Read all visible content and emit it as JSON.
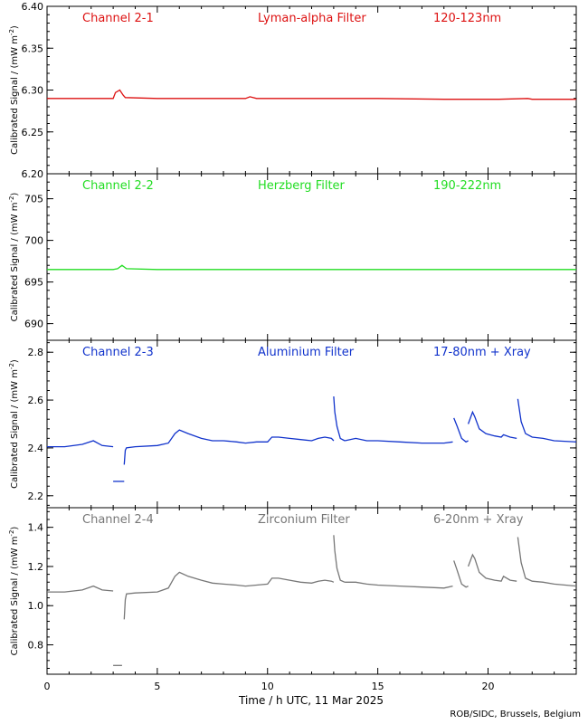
{
  "credit": "ROB/SIDC, Brussels, Belgium",
  "chart_data": {
    "type": "line",
    "xlabel": "Time / h UTC, 11 Mar 2025",
    "xlim": [
      0,
      24
    ],
    "xticks": [
      0,
      5,
      10,
      15,
      20
    ],
    "panels": [
      {
        "channel": "Channel 2-1",
        "filter": "Lyman-alpha Filter",
        "band": "120-123nm",
        "color": "#dd1111",
        "ylabel": "Calibrated Signal / (mW m",
        "ylabel_sup": "-2",
        "ylabel_end": ")",
        "ylim": [
          6.2,
          6.4
        ],
        "yticks": [
          "6.20",
          "6.25",
          "6.30",
          "6.35",
          "6.40"
        ],
        "series": [
          {
            "x": [
              0,
              3.0,
              3.1,
              3.3,
              3.45,
              3.55,
              5,
              7.5,
              9.0,
              9.2,
              9.5,
              12,
              15,
              18,
              20.5,
              21.8,
              22,
              24
            ],
            "y": [
              6.29,
              6.29,
              6.297,
              6.3,
              6.294,
              6.291,
              6.29,
              6.29,
              6.29,
              6.292,
              6.29,
              6.29,
              6.29,
              6.289,
              6.289,
              6.29,
              6.289,
              6.289
            ]
          }
        ]
      },
      {
        "channel": "Channel 2-2",
        "filter": "Herzberg Filter",
        "band": "190-222nm",
        "color": "#22dd22",
        "ylabel": "Calibrated Signal / (mW m",
        "ylabel_sup": "-2",
        "ylabel_end": ")",
        "ylim": [
          688,
          708
        ],
        "yticks": [
          "690",
          "695",
          "700",
          "705"
        ],
        "series": [
          {
            "x": [
              0,
              3.0,
              3.2,
              3.4,
              3.6,
              5,
              10,
              15,
              20,
              24
            ],
            "y": [
              696.5,
              696.5,
              696.6,
              697.0,
              696.6,
              696.5,
              696.5,
              696.5,
              696.5,
              696.5
            ]
          }
        ]
      },
      {
        "channel": "Channel 2-3",
        "filter": "Aluminium Filter",
        "band": "17-80nm + Xray",
        "color": "#1133cc",
        "ylabel": "Calibrated Signal / (mW m",
        "ylabel_sup": "-2",
        "ylabel_end": ")",
        "ylim": [
          2.15,
          2.85
        ],
        "yticks": [
          "2.2",
          "2.4",
          "2.6",
          "2.8"
        ],
        "series": [
          {
            "x": [
              0,
              0.8,
              1.6,
              2.1,
              2.5,
              3.0
            ],
            "y": [
              2.405,
              2.405,
              2.415,
              2.43,
              2.41,
              2.405
            ]
          },
          {
            "x": [
              3.0,
              3.5
            ],
            "y": [
              2.26,
              2.26
            ]
          },
          {
            "x": [
              3.5,
              3.55,
              3.6,
              4,
              5,
              5.5,
              5.8,
              6.0,
              6.4,
              7.0,
              7.5,
              8,
              8.6,
              9,
              9.5,
              10,
              10.2,
              10.5,
              11,
              11.5,
              12,
              12.3,
              12.6,
              12.9,
              13.0
            ],
            "y": [
              2.33,
              2.39,
              2.4,
              2.405,
              2.41,
              2.42,
              2.46,
              2.475,
              2.46,
              2.44,
              2.43,
              2.43,
              2.425,
              2.42,
              2.425,
              2.425,
              2.445,
              2.445,
              2.44,
              2.435,
              2.43,
              2.44,
              2.445,
              2.44,
              2.43
            ]
          },
          {
            "x": [
              13.0,
              13.05,
              13.15,
              13.3,
              13.5
            ],
            "y": [
              2.615,
              2.55,
              2.49,
              2.44,
              2.43
            ]
          },
          {
            "x": [
              13.5,
              14,
              14.5,
              15,
              16,
              17,
              18,
              18.4
            ],
            "y": [
              2.43,
              2.44,
              2.43,
              2.43,
              2.425,
              2.42,
              2.42,
              2.425
            ]
          },
          {
            "x": [
              18.45,
              18.6,
              18.8,
              19.0,
              19.1
            ],
            "y": [
              2.525,
              2.49,
              2.44,
              2.425,
              2.43
            ]
          },
          {
            "x": [
              19.1,
              19.3,
              19.4,
              19.6,
              19.9,
              20.3,
              20.6,
              20.7,
              21.0,
              21.3
            ],
            "y": [
              2.5,
              2.55,
              2.53,
              2.48,
              2.46,
              2.45,
              2.445,
              2.455,
              2.445,
              2.44
            ]
          },
          {
            "x": [
              21.35,
              21.5,
              21.7,
              22.0,
              22.5,
              23,
              24
            ],
            "y": [
              2.605,
              2.51,
              2.46,
              2.445,
              2.44,
              2.43,
              2.425
            ]
          }
        ]
      },
      {
        "channel": "Channel 2-4",
        "filter": "Zirconium Filter",
        "band": "6-20nm + Xray",
        "color": "#777777",
        "ylabel": "Calibrated Signal / (mW m",
        "ylabel_sup": "-2",
        "ylabel_end": ")",
        "ylim": [
          0.65,
          1.5
        ],
        "yticks": [
          "0.8",
          "1.0",
          "1.2",
          "1.4"
        ],
        "series": [
          {
            "x": [
              0,
              0.8,
              1.6,
              2.1,
              2.5,
              3.0
            ],
            "y": [
              1.07,
              1.07,
              1.08,
              1.1,
              1.08,
              1.075
            ]
          },
          {
            "x": [
              3.0,
              3.4
            ],
            "y": [
              0.695,
              0.695
            ]
          },
          {
            "x": [
              3.5,
              3.55,
              3.6,
              4,
              5,
              5.5,
              5.8,
              6.0,
              6.4,
              7.0,
              7.5,
              8,
              8.6,
              9,
              9.5,
              10,
              10.2,
              10.5,
              11,
              11.5,
              12,
              12.3,
              12.6,
              12.9,
              13.0
            ],
            "y": [
              0.93,
              1.03,
              1.06,
              1.065,
              1.07,
              1.09,
              1.15,
              1.17,
              1.15,
              1.13,
              1.115,
              1.11,
              1.105,
              1.1,
              1.105,
              1.11,
              1.14,
              1.14,
              1.13,
              1.12,
              1.115,
              1.125,
              1.13,
              1.125,
              1.12
            ]
          },
          {
            "x": [
              13.0,
              13.05,
              13.15,
              13.3,
              13.5
            ],
            "y": [
              1.36,
              1.28,
              1.19,
              1.13,
              1.12
            ]
          },
          {
            "x": [
              13.5,
              14,
              14.5,
              15,
              16,
              17,
              18,
              18.4
            ],
            "y": [
              1.12,
              1.12,
              1.11,
              1.105,
              1.1,
              1.095,
              1.09,
              1.1
            ]
          },
          {
            "x": [
              18.45,
              18.6,
              18.8,
              19.0,
              19.1
            ],
            "y": [
              1.23,
              1.18,
              1.11,
              1.095,
              1.1
            ]
          },
          {
            "x": [
              19.1,
              19.3,
              19.4,
              19.6,
              19.9,
              20.3,
              20.6,
              20.7,
              21.0,
              21.3
            ],
            "y": [
              1.2,
              1.26,
              1.24,
              1.17,
              1.14,
              1.13,
              1.125,
              1.15,
              1.13,
              1.125
            ]
          },
          {
            "x": [
              21.35,
              21.5,
              21.7,
              22.0,
              22.5,
              23,
              24
            ],
            "y": [
              1.35,
              1.22,
              1.14,
              1.125,
              1.12,
              1.11,
              1.1
            ]
          }
        ]
      }
    ]
  }
}
